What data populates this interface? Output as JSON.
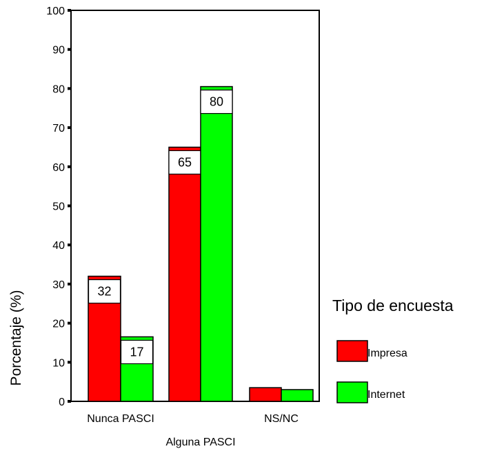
{
  "chart_data": {
    "type": "bar",
    "title": "",
    "xlabel": "",
    "ylabel": "Porcentaje (%)",
    "ylim": [
      0,
      100
    ],
    "yticks": [
      0,
      10,
      20,
      30,
      40,
      50,
      60,
      70,
      80,
      90,
      100
    ],
    "grid": false,
    "categories": [
      "Nunca PASCI",
      "Alguna PASCI",
      "NS/NC"
    ],
    "series": [
      {
        "name": "Impresa",
        "color": "#ff0000",
        "values": [
          32,
          65,
          3.5
        ],
        "labels": [
          "32",
          "65",
          ""
        ]
      },
      {
        "name": "Internet",
        "color": "#00ff00",
        "values": [
          16.5,
          80.5,
          3
        ],
        "labels": [
          "17",
          "80",
          ""
        ]
      }
    ],
    "legend": {
      "title": "Tipo de encuesta",
      "placement": "right"
    }
  }
}
